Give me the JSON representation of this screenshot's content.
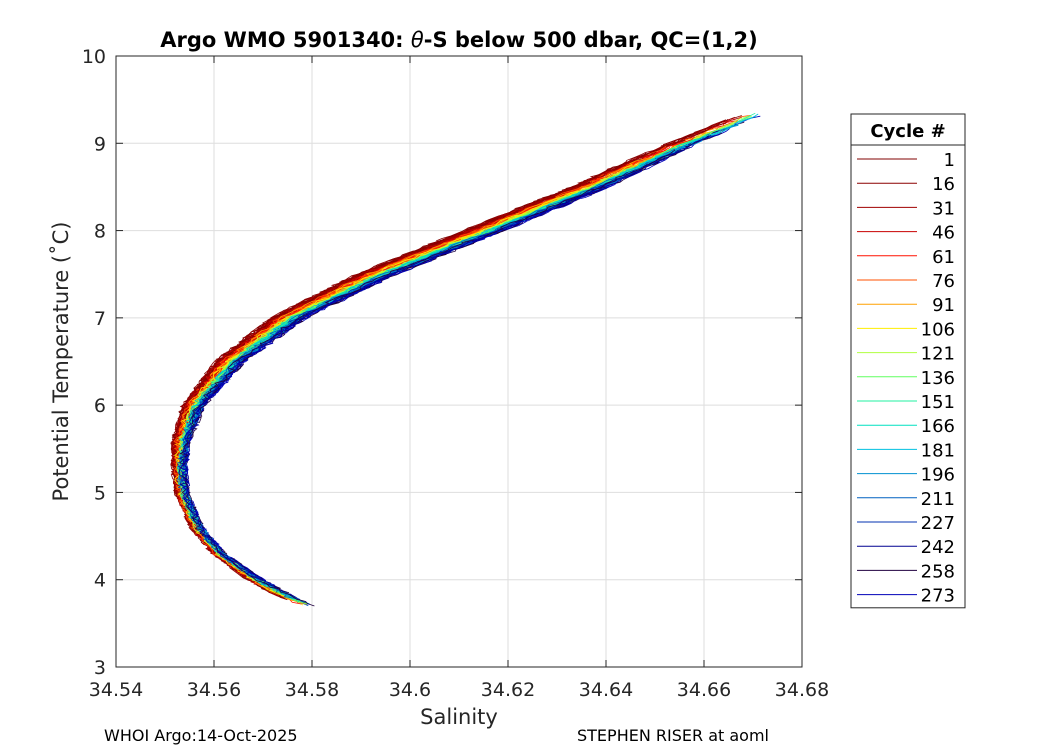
{
  "chart_data": {
    "type": "line",
    "title_prefix": "Argo WMO 5901340: ",
    "title_symbol": "θ",
    "title_suffix": "-S below 500 dbar,  QC=(1,2)",
    "xlabel": "Salinity",
    "ylabel": "Potential Temperature (˚C)",
    "xlim": [
      34.54,
      34.68
    ],
    "ylim": [
      3,
      10
    ],
    "x_ticks": [
      34.54,
      34.56,
      34.58,
      34.6,
      34.62,
      34.64,
      34.66,
      34.68
    ],
    "x_tick_labels": [
      "34.54",
      "34.56",
      "34.58",
      "34.6",
      "34.62",
      "34.64",
      "34.66",
      "34.68"
    ],
    "y_ticks": [
      3,
      4,
      5,
      6,
      7,
      8,
      9,
      10
    ],
    "y_tick_labels": [
      "3",
      "4",
      "5",
      "6",
      "7",
      "8",
      "9",
      "10"
    ],
    "grid": true,
    "legend_title": "Cycle #",
    "legend_position": "right",
    "base_curve": {
      "theta": [
        3.55,
        3.8,
        4.0,
        4.3,
        4.6,
        5.0,
        5.3,
        5.6,
        6.0,
        6.5,
        7.0,
        7.5,
        8.0,
        8.5,
        9.0,
        9.4
      ],
      "salinity": [
        34.586,
        34.575,
        34.5685,
        34.561,
        34.5565,
        34.5535,
        34.553,
        34.5535,
        34.556,
        34.5635,
        34.5755,
        34.5935,
        34.6155,
        34.637,
        34.656,
        34.673
      ]
    },
    "series": [
      {
        "name": "1",
        "color": "#800000",
        "offset": -0.004
      },
      {
        "name": "16",
        "color": "#8b0000",
        "offset": -0.0035
      },
      {
        "name": "31",
        "color": "#a00000",
        "offset": -0.003
      },
      {
        "name": "46",
        "color": "#c80000",
        "offset": -0.0025
      },
      {
        "name": "61",
        "color": "#ff1000",
        "offset": -0.002
      },
      {
        "name": "76",
        "color": "#ff5000",
        "offset": -0.0015
      },
      {
        "name": "91",
        "color": "#ffa000",
        "offset": -0.001
      },
      {
        "name": "106",
        "color": "#ffee00",
        "offset": -0.0005
      },
      {
        "name": "121",
        "color": "#b0ff40",
        "offset": 0.0
      },
      {
        "name": "136",
        "color": "#60ff60",
        "offset": 0.0003
      },
      {
        "name": "151",
        "color": "#20f0a0",
        "offset": 0.0006
      },
      {
        "name": "166",
        "color": "#00e0c0",
        "offset": 0.0009
      },
      {
        "name": "181",
        "color": "#00c0e0",
        "offset": 0.0012
      },
      {
        "name": "196",
        "color": "#0090d0",
        "offset": 0.0015
      },
      {
        "name": "211",
        "color": "#0060c0",
        "offset": 0.0018
      },
      {
        "name": "227",
        "color": "#0030b0",
        "offset": 0.0021
      },
      {
        "name": "242",
        "color": "#000090",
        "offset": 0.0024
      },
      {
        "name": "258",
        "color": "#200040",
        "offset": 0.0027
      },
      {
        "name": "273",
        "color": "#0000b8",
        "offset": 0.003
      }
    ]
  },
  "footer": {
    "left": "WHOI Argo:14-Oct-2025",
    "right": "STEPHEN RISER at aoml"
  }
}
